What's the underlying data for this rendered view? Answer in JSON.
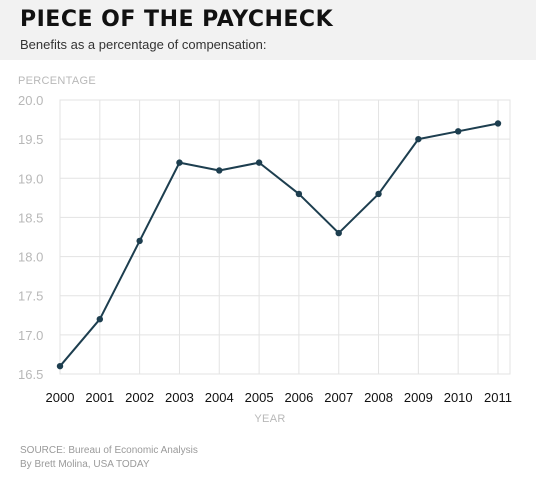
{
  "header": {
    "title": "PIECE OF THE PAYCHECK",
    "subtitle": "Benefits as a percentage of compensation:"
  },
  "chart_data": {
    "type": "line",
    "ylabel": "PERCENTAGE",
    "xlabel": "YEAR",
    "x": [
      "2000",
      "2001",
      "2002",
      "2003",
      "2004",
      "2005",
      "2006",
      "2007",
      "2008",
      "2009",
      "2010",
      "2011"
    ],
    "series": [
      {
        "values": [
          16.6,
          17.2,
          18.2,
          19.2,
          19.1,
          19.2,
          18.8,
          18.3,
          18.8,
          19.5,
          19.6,
          19.7
        ]
      }
    ],
    "yticks": [
      "16.5",
      "17.0",
      "17.5",
      "18.0",
      "18.5",
      "19.0",
      "19.5",
      "20.0"
    ],
    "ylim": [
      16.5,
      20.0
    ],
    "grid": true,
    "line_color": "#1d3e4f",
    "marker_color": "#1d3e4f",
    "grid_color": "#e3e3e3"
  },
  "footer": {
    "source": "SOURCE: Bureau of Economic Analysis",
    "byline": "By Brett Molina, USA TODAY"
  }
}
